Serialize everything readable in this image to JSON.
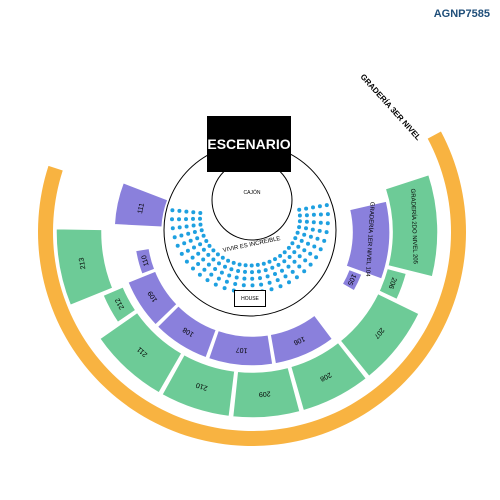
{
  "map_code": "AGNP7585",
  "stage_label": "ESCENARIO",
  "cajon_label": "CAJÓN",
  "floor_label": "VIVIR ES INCREIBLE",
  "house_label": "HOUSE",
  "outer_section_label": "GRADERÍA 3ER NIVEL",
  "colors": {
    "purple": "#8a80dc",
    "green": "#6dcb97",
    "orange": "#f8b341",
    "seat": "#1ea0e0",
    "stage": "#000000"
  },
  "sections": [
    {
      "id": "111",
      "label": "111",
      "color": "purple"
    },
    {
      "id": "110",
      "label": "110",
      "color": "purple"
    },
    {
      "id": "109",
      "label": "109",
      "color": "purple"
    },
    {
      "id": "108",
      "label": "108",
      "color": "purple"
    },
    {
      "id": "107",
      "label": "107",
      "color": "purple"
    },
    {
      "id": "106",
      "label": "106",
      "color": "purple"
    },
    {
      "id": "105",
      "label": "105",
      "color": "purple"
    },
    {
      "id": "104",
      "label": "GRADERÍA 1ER NIVEL 104",
      "color": "purple"
    },
    {
      "id": "213",
      "label": "213",
      "color": "green"
    },
    {
      "id": "212",
      "label": "212",
      "color": "green"
    },
    {
      "id": "211",
      "label": "211",
      "color": "green"
    },
    {
      "id": "210",
      "label": "210",
      "color": "green"
    },
    {
      "id": "209",
      "label": "209",
      "color": "green"
    },
    {
      "id": "208",
      "label": "208",
      "color": "green"
    },
    {
      "id": "207",
      "label": "207",
      "color": "green"
    },
    {
      "id": "206",
      "label": "206",
      "color": "green"
    },
    {
      "id": "205",
      "label": "GRADERÍA 2DO NIVEL 205",
      "color": "green"
    }
  ]
}
